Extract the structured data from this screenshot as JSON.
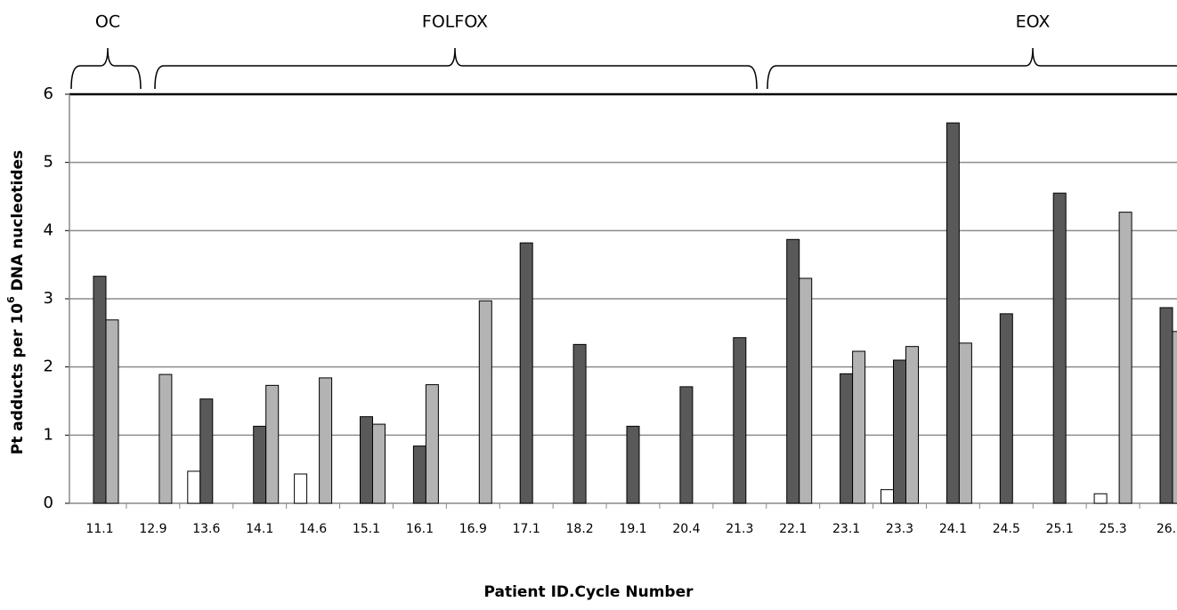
{
  "chart_data": {
    "type": "bar",
    "groups": [
      {
        "label": "OC"
      },
      {
        "label": "FOLFOX"
      },
      {
        "label": "EOX"
      }
    ],
    "xlabel": "Patient ID.Cycle Number",
    "ylabel": [
      "Pt adducts per 10",
      "6",
      " DNA nucleotides"
    ],
    "categories": [
      "11.1",
      "12.9",
      "13.6",
      "14.1",
      "14.6",
      "15.1",
      "16.1",
      "16.9",
      "17.1",
      "18.2",
      "19.1",
      "20.4",
      "21.3",
      "22.1",
      "23.1",
      "23.3",
      "24.1",
      "24.5",
      "25.1",
      "25.3",
      "26."
    ],
    "series": [
      {
        "color": "#ffffff",
        "values": [
          null,
          null,
          0.47,
          null,
          0.43,
          null,
          null,
          null,
          null,
          null,
          null,
          null,
          null,
          null,
          null,
          0.2,
          null,
          null,
          null,
          0.14,
          null
        ]
      },
      {
        "color": "#595959",
        "values": [
          3.33,
          null,
          1.53,
          1.13,
          null,
          1.27,
          0.84,
          null,
          3.82,
          2.33,
          1.13,
          1.71,
          2.43,
          3.87,
          1.9,
          2.1,
          5.58,
          2.78,
          4.55,
          null,
          2.87
        ]
      },
      {
        "color": "#b3b3b3",
        "values": [
          2.69,
          1.89,
          null,
          1.73,
          1.84,
          1.16,
          1.74,
          2.97,
          null,
          null,
          null,
          null,
          null,
          3.3,
          2.23,
          2.3,
          2.35,
          null,
          null,
          4.27,
          2.52
        ]
      }
    ],
    "ylim": [
      0,
      6
    ],
    "yticks": [
      0,
      1,
      2,
      3,
      4,
      5,
      6
    ],
    "grid": true
  }
}
